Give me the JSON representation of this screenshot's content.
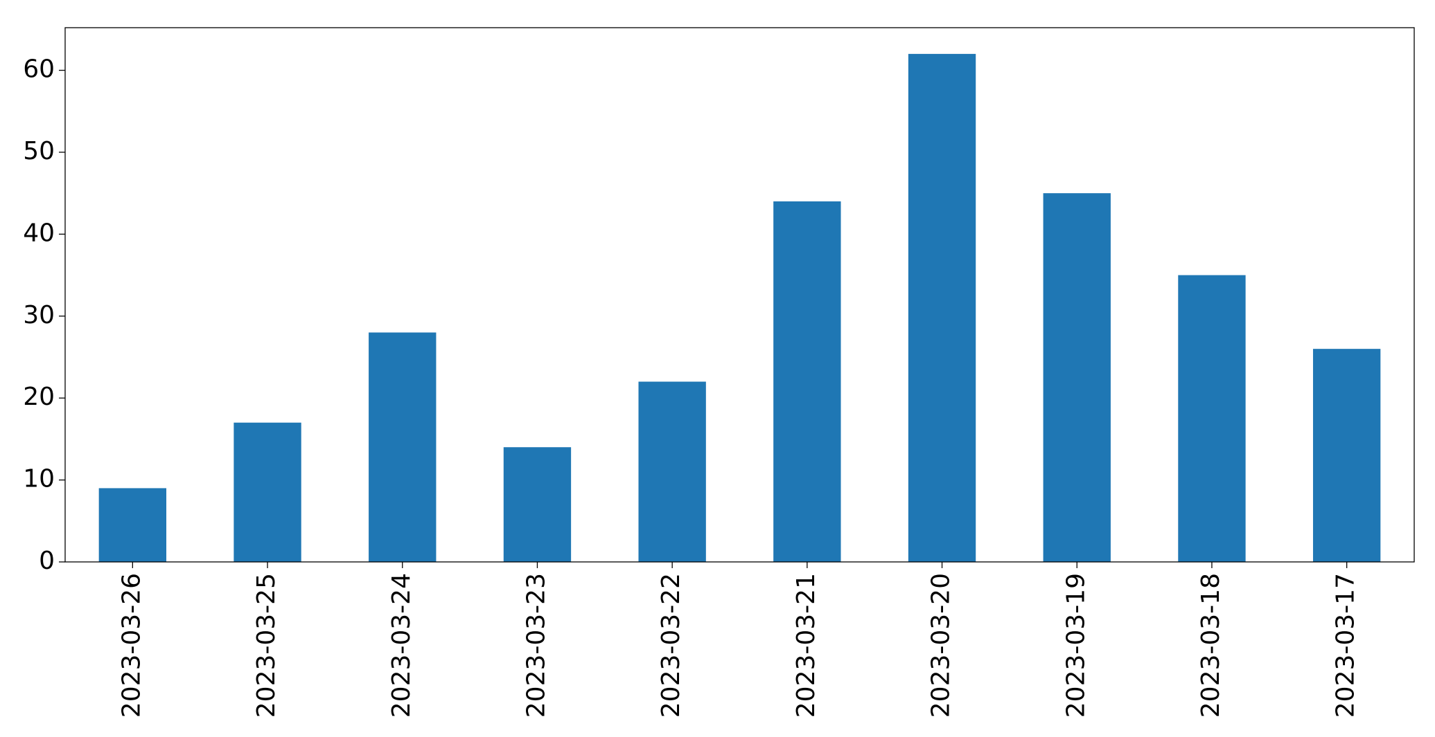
{
  "chart_data": {
    "type": "bar",
    "categories": [
      "2023-03-26",
      "2023-03-25",
      "2023-03-24",
      "2023-03-23",
      "2023-03-22",
      "2023-03-21",
      "2023-03-20",
      "2023-03-19",
      "2023-03-18",
      "2023-03-17"
    ],
    "values": [
      9,
      17,
      28,
      14,
      22,
      44,
      62,
      45,
      35,
      26
    ],
    "color": "#1f77b4",
    "ylim": [
      0,
      65.2
    ],
    "yticks": [
      0,
      10,
      20,
      30,
      40,
      50,
      60
    ],
    "grid": false
  }
}
